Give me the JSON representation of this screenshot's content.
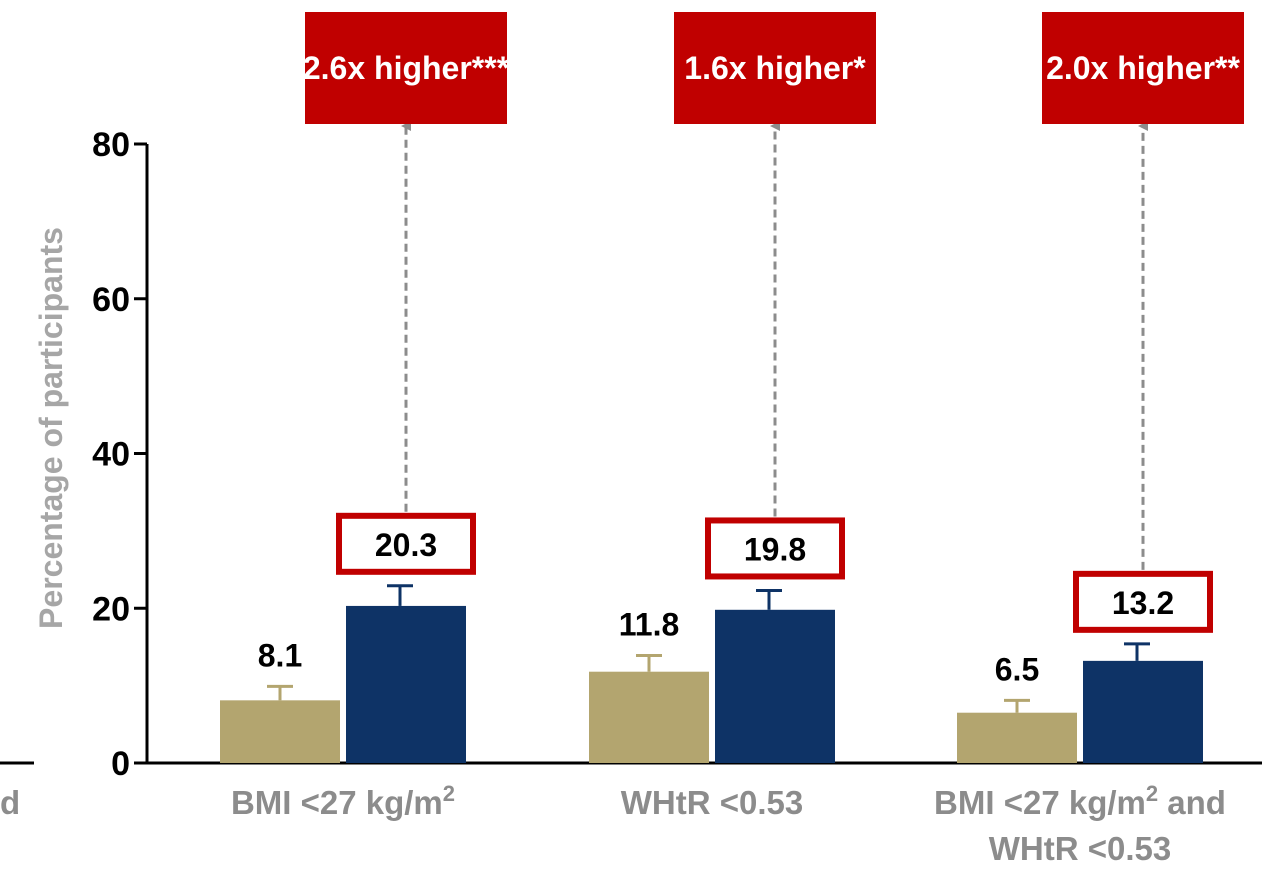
{
  "chart_data": {
    "type": "bar",
    "categories": [
      "BMI <27 kg/m²",
      "WHtR <0.53",
      "BMI <27 kg/m² and WHtR <0.53"
    ],
    "category_label_lines": [
      [
        "BMI <27 kg/m",
        "2",
        ""
      ],
      [
        "WHtR <0.53",
        "",
        ""
      ],
      [
        "BMI <27 kg/m",
        "2",
        " and"
      ]
    ],
    "category_label_second_line": [
      "",
      "",
      "WHtR <0.53"
    ],
    "series": [
      {
        "values": [
          8.1,
          11.8,
          6.5
        ],
        "errors": [
          1.8,
          2.1,
          1.6
        ],
        "color": "#b3a56f"
      },
      {
        "values": [
          20.3,
          19.8,
          13.2
        ],
        "errors": [
          2.6,
          2.5,
          2.2
        ],
        "color": "#0e3366"
      }
    ],
    "value_labels": [
      [
        "8.1",
        "20.3"
      ],
      [
        "11.8",
        "19.8"
      ],
      [
        "6.5",
        "13.2"
      ]
    ],
    "comparisons": [
      "2.6x higher***",
      "1.6x higher*",
      "2.0x higher**"
    ],
    "ylabel": "Percentage of participants",
    "ylim": [
      0,
      80
    ],
    "yticks": [
      0,
      20,
      40,
      60,
      80
    ],
    "partial_left_text": "d",
    "highlight_color": "#c00000",
    "arrow_color": "#8c8c8c",
    "grid": false
  }
}
